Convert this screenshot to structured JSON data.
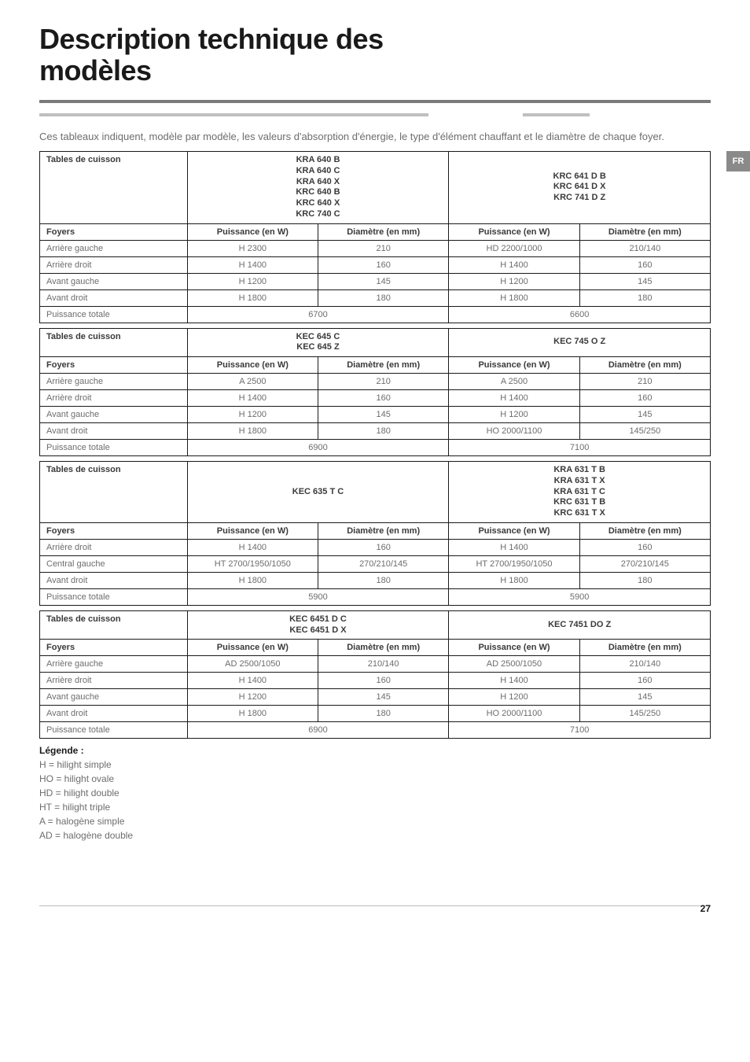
{
  "title_l1": "Description technique des",
  "title_l2": "modèles",
  "intro": "Ces tableaux indiquent, modèle par modèle, les valeurs d'absorption d'énergie, le type d'élément chauffant et le diamètre de chaque foyer.",
  "side_tab": "FR",
  "col_labels": {
    "tables": "Tables de cuisson",
    "foyers": "Foyers",
    "pw": "Puissance (en W)",
    "dm": "Diamètre (en mm)"
  },
  "t1": {
    "left_models": "KRA 640 B\nKRA 640 C\nKRA 640 X\nKRC 640 B\nKRC 640 X\nKRC 740 C",
    "right_models": "KRC 641 D B\nKRC 641 D X\nKRC 741 D Z",
    "rows": [
      {
        "label": "Arrière gauche",
        "l_pw": "H 2300",
        "l_dm": "210",
        "r_pw": "HD 2200/1000",
        "r_dm": "210/140"
      },
      {
        "label": "Arrière droit",
        "l_pw": "H 1400",
        "l_dm": "160",
        "r_pw": "H 1400",
        "r_dm": "160"
      },
      {
        "label": "Avant gauche",
        "l_pw": "H 1200",
        "l_dm": "145",
        "r_pw": "H 1200",
        "r_dm": "145"
      },
      {
        "label": "Avant droit",
        "l_pw": "H 1800",
        "l_dm": "180",
        "r_pw": "H 1800",
        "r_dm": "180"
      }
    ],
    "total_label": "Puissance totale",
    "total_l": "6700",
    "total_r": "6600"
  },
  "t2": {
    "left_models": "KEC 645 C\nKEC 645 Z",
    "right_models": "KEC 745 O Z",
    "rows": [
      {
        "label": "Arrière gauche",
        "l_pw": "A 2500",
        "l_dm": "210",
        "r_pw": "A 2500",
        "r_dm": "210"
      },
      {
        "label": "Arrière droit",
        "l_pw": "H 1400",
        "l_dm": "160",
        "r_pw": "H 1400",
        "r_dm": "160"
      },
      {
        "label": "Avant gauche",
        "l_pw": "H 1200",
        "l_dm": "145",
        "r_pw": "H 1200",
        "r_dm": "145"
      },
      {
        "label": "Avant droit",
        "l_pw": "H 1800",
        "l_dm": "180",
        "r_pw": "HO 2000/1100",
        "r_dm": "145/250"
      }
    ],
    "total_label": "Puissance totale",
    "total_l": "6900",
    "total_r": "7100"
  },
  "t3": {
    "left_models": "KEC 635 T C",
    "right_models": "KRA 631 T B\nKRA 631 T X\nKRA 631 T C\nKRC 631 T B\nKRC 631 T X",
    "rows": [
      {
        "label": "Arrière droit",
        "l_pw": "H 1400",
        "l_dm": "160",
        "r_pw": "H 1400",
        "r_dm": "160"
      },
      {
        "label": "Central gauche",
        "l_pw": "HT 2700/1950/1050",
        "l_dm": "270/210/145",
        "r_pw": "HT 2700/1950/1050",
        "r_dm": "270/210/145"
      },
      {
        "label": "Avant droit",
        "l_pw": "H 1800",
        "l_dm": "180",
        "r_pw": "H 1800",
        "r_dm": "180"
      }
    ],
    "total_label": "Puissance totale",
    "total_l": "5900",
    "total_r": "5900"
  },
  "t4": {
    "left_models": "KEC 6451 D C\nKEC 6451 D X",
    "right_models": "KEC 7451 DO Z",
    "rows": [
      {
        "label": "Arrière gauche",
        "l_pw": "AD 2500/1050",
        "l_dm": "210/140",
        "r_pw": "AD 2500/1050",
        "r_dm": "210/140"
      },
      {
        "label": "Arrière droit",
        "l_pw": "H 1400",
        "l_dm": "160",
        "r_pw": "H 1400",
        "r_dm": "160"
      },
      {
        "label": "Avant gauche",
        "l_pw": "H 1200",
        "l_dm": "145",
        "r_pw": "H 1200",
        "r_dm": "145"
      },
      {
        "label": "Avant droit",
        "l_pw": "H 1800",
        "l_dm": "180",
        "r_pw": "HO 2000/1100",
        "r_dm": "145/250"
      }
    ],
    "total_label": "Puissance totale",
    "total_l": "6900",
    "total_r": "7100"
  },
  "legend": {
    "title": "Légende :",
    "lines": [
      "H = hilight simple",
      "HO = hilight ovale",
      "HD = hilight double",
      "HT = hilight triple",
      "A = halogène simple",
      "AD = halogène double"
    ]
  },
  "page_num": "27"
}
